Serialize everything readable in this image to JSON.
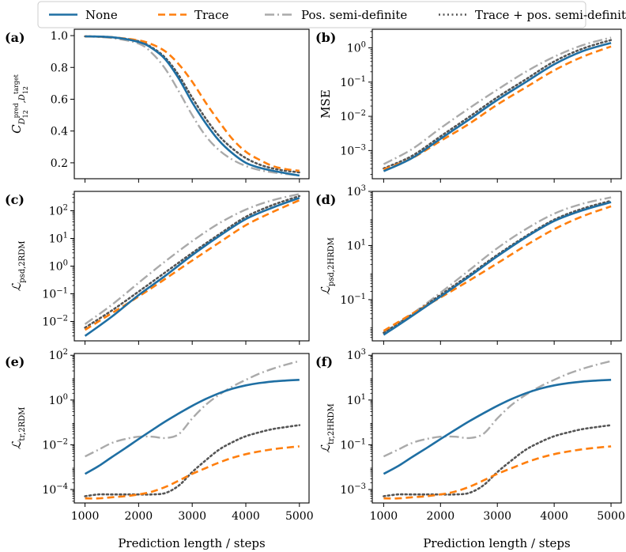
{
  "legend": {
    "entries": [
      {
        "key": "none",
        "label": "None",
        "color": "#1f6fa3",
        "dash": "solid"
      },
      {
        "key": "trace",
        "label": "Trace",
        "color": "#ff7f0e",
        "dash": "dashed"
      },
      {
        "key": "psd",
        "label": "Pos. semi-definite",
        "color": "#aaaaaa",
        "dash": "dashdot"
      },
      {
        "key": "trpsd",
        "label": "Trace + pos. semi-definite",
        "color": "#555555",
        "dash": "dotted"
      }
    ]
  },
  "xlabel": "Prediction length / steps",
  "chart_data": [
    {
      "id": "a",
      "letter": "(a)",
      "type": "line",
      "scale": "linear",
      "ylabel": "C_{D12pred, D12target}",
      "xlim": [
        800,
        5180
      ],
      "ylim": [
        0.1,
        1.04
      ],
      "xticks": [
        1000,
        2000,
        3000,
        4000,
        5000
      ],
      "yticks": [
        0.2,
        0.4,
        0.6,
        0.8,
        1.0
      ],
      "ytick_labels": [
        "0.2",
        "0.4",
        "0.6",
        "0.8",
        "1.0"
      ],
      "x": [
        1000,
        1500,
        2000,
        2250,
        2500,
        2750,
        3000,
        3250,
        3500,
        3750,
        4000,
        4250,
        4500,
        4750,
        5000
      ],
      "series": {
        "none": [
          0.995,
          0.99,
          0.96,
          0.92,
          0.85,
          0.73,
          0.58,
          0.45,
          0.34,
          0.26,
          0.2,
          0.17,
          0.15,
          0.135,
          0.12
        ],
        "trace": [
          0.995,
          0.99,
          0.97,
          0.945,
          0.9,
          0.82,
          0.71,
          0.58,
          0.46,
          0.35,
          0.27,
          0.22,
          0.18,
          0.16,
          0.15
        ],
        "psd": [
          0.995,
          0.985,
          0.95,
          0.89,
          0.79,
          0.65,
          0.5,
          0.37,
          0.28,
          0.22,
          0.18,
          0.155,
          0.14,
          0.13,
          0.12
        ],
        "trpsd": [
          0.995,
          0.99,
          0.965,
          0.925,
          0.86,
          0.75,
          0.61,
          0.48,
          0.37,
          0.29,
          0.23,
          0.19,
          0.165,
          0.15,
          0.14
        ]
      }
    },
    {
      "id": "b",
      "letter": "(b)",
      "type": "line",
      "scale": "log",
      "ylabel": "MSE",
      "xlim": [
        800,
        5180
      ],
      "ylim": [
        0.00015,
        3.5
      ],
      "xticks": [
        1000,
        2000,
        3000,
        4000,
        5000
      ],
      "yticks": [
        0.001,
        0.01,
        0.1,
        1
      ],
      "ytick_labels": [
        "10^-3",
        "10^-2",
        "10^-1",
        "10^0"
      ],
      "x": [
        1000,
        1500,
        2000,
        2500,
        3000,
        3500,
        4000,
        4500,
        5000
      ],
      "series": {
        "none": [
          0.00025,
          0.0006,
          0.0022,
          0.008,
          0.03,
          0.1,
          0.33,
          0.8,
          1.4
        ],
        "trace": [
          0.00028,
          0.0006,
          0.0019,
          0.006,
          0.022,
          0.07,
          0.22,
          0.55,
          1.1
        ],
        "psd": [
          0.0004,
          0.0011,
          0.0045,
          0.017,
          0.06,
          0.2,
          0.55,
          1.2,
          2.0
        ],
        "trpsd": [
          0.0003,
          0.0007,
          0.0026,
          0.0095,
          0.036,
          0.12,
          0.4,
          0.95,
          1.7
        ]
      }
    },
    {
      "id": "c",
      "letter": "(c)",
      "type": "line",
      "scale": "log",
      "ylabel": "L_{psd,2RDM}",
      "xlim": [
        800,
        5180
      ],
      "ylim": [
        0.002,
        500
      ],
      "xticks": [
        1000,
        2000,
        3000,
        4000,
        5000
      ],
      "yticks": [
        0.01,
        0.1,
        1,
        10,
        100
      ],
      "ytick_labels": [
        "10^-2",
        "10^-1",
        "10^0",
        "10^1",
        "10^2"
      ],
      "x": [
        1000,
        1500,
        2000,
        2500,
        3000,
        3500,
        4000,
        4500,
        5000
      ],
      "series": {
        "none": [
          0.003,
          0.015,
          0.09,
          0.45,
          2.5,
          12,
          50,
          130,
          290
        ],
        "trace": [
          0.005,
          0.02,
          0.08,
          0.35,
          1.6,
          7,
          30,
          90,
          240
        ],
        "psd": [
          0.008,
          0.04,
          0.25,
          1.5,
          8,
          35,
          110,
          240,
          400
        ],
        "trpsd": [
          0.006,
          0.025,
          0.12,
          0.6,
          3,
          14,
          60,
          160,
          340
        ]
      }
    },
    {
      "id": "d",
      "letter": "(d)",
      "type": "line",
      "scale": "log",
      "ylabel": "L_{psd,2HRDM}",
      "xlim": [
        800,
        5180
      ],
      "ylim": [
        0.003,
        1000
      ],
      "xticks": [
        1000,
        2000,
        3000,
        4000,
        5000
      ],
      "yticks": [
        0.1,
        10,
        1000
      ],
      "ytick_labels": [
        "10^-1",
        "10^1",
        "10^3"
      ],
      "x": [
        1000,
        1500,
        2000,
        2500,
        3000,
        3500,
        4000,
        4500,
        5000
      ],
      "series": {
        "none": [
          0.005,
          0.025,
          0.13,
          0.7,
          4,
          20,
          80,
          200,
          400
        ],
        "trace": [
          0.007,
          0.03,
          0.12,
          0.5,
          2.2,
          10,
          40,
          120,
          280
        ],
        "psd": [
          0.006,
          0.03,
          0.18,
          1.2,
          8,
          40,
          150,
          350,
          600
        ],
        "trpsd": [
          0.006,
          0.028,
          0.15,
          0.8,
          4.5,
          22,
          90,
          230,
          450
        ]
      }
    },
    {
      "id": "e",
      "letter": "(e)",
      "type": "line",
      "scale": "log",
      "ylabel": "L_{tr,2RDM}",
      "xlim": [
        800,
        5180
      ],
      "ylim": [
        2.5e-05,
        120
      ],
      "xticks": [
        1000,
        2000,
        3000,
        4000,
        5000
      ],
      "yticks": [
        0.0001,
        0.01,
        1,
        100
      ],
      "ytick_labels": [
        "10^-4",
        "10^-2",
        "10^0",
        "10^2"
      ],
      "x": [
        1000,
        1250,
        1500,
        1750,
        2000,
        2250,
        2500,
        2750,
        3000,
        3250,
        3500,
        3750,
        4000,
        4250,
        4500,
        4750,
        5000
      ],
      "series": {
        "none": [
          0.0005,
          0.0011,
          0.0028,
          0.007,
          0.018,
          0.045,
          0.11,
          0.25,
          0.55,
          1.1,
          2.0,
          3.2,
          4.5,
          5.7,
          6.7,
          7.4,
          8.0
        ],
        "trace": [
          4e-05,
          4e-05,
          4.5e-05,
          5e-05,
          6e-05,
          8e-05,
          0.00013,
          0.00025,
          0.0005,
          0.0009,
          0.0016,
          0.0026,
          0.0038,
          0.005,
          0.0063,
          0.0074,
          0.0085
        ],
        "psd": [
          0.003,
          0.006,
          0.012,
          0.018,
          0.023,
          0.023,
          0.02,
          0.03,
          0.15,
          0.6,
          1.7,
          4.0,
          8.0,
          15,
          25,
          38,
          55
        ],
        "trpsd": [
          5e-05,
          6e-05,
          6e-05,
          6e-05,
          6e-05,
          6e-05,
          7e-05,
          0.00015,
          0.0006,
          0.002,
          0.006,
          0.013,
          0.024,
          0.036,
          0.05,
          0.062,
          0.075
        ]
      }
    },
    {
      "id": "f",
      "letter": "(f)",
      "type": "line",
      "scale": "log",
      "ylabel": "L_{tr,2HRDM}",
      "xlim": [
        800,
        5180
      ],
      "ylim": [
        0.00025,
        1200
      ],
      "xticks": [
        1000,
        2000,
        3000,
        4000,
        5000
      ],
      "yticks": [
        0.001,
        0.1,
        10,
        1000
      ],
      "ytick_labels": [
        "10^-3",
        "10^-1",
        "10^1",
        "10^3"
      ],
      "x": [
        1000,
        1250,
        1500,
        1750,
        2000,
        2250,
        2500,
        2750,
        3000,
        3250,
        3500,
        3750,
        4000,
        4250,
        4500,
        4750,
        5000
      ],
      "series": {
        "none": [
          0.005,
          0.011,
          0.028,
          0.07,
          0.18,
          0.45,
          1.1,
          2.5,
          5.5,
          11,
          20,
          32,
          45,
          57,
          67,
          74,
          80
        ],
        "trace": [
          0.0004,
          0.0004,
          0.00045,
          0.0005,
          0.0006,
          0.0008,
          0.0013,
          0.0025,
          0.005,
          0.009,
          0.016,
          0.026,
          0.038,
          0.05,
          0.063,
          0.074,
          0.085
        ],
        "psd": [
          0.03,
          0.06,
          0.12,
          0.18,
          0.23,
          0.23,
          0.2,
          0.3,
          1.5,
          6,
          17,
          40,
          80,
          150,
          250,
          380,
          550
        ],
        "trpsd": [
          0.0005,
          0.0006,
          0.0006,
          0.0006,
          0.0006,
          0.0006,
          0.0007,
          0.0015,
          0.006,
          0.02,
          0.06,
          0.13,
          0.24,
          0.36,
          0.5,
          0.62,
          0.75
        ]
      }
    }
  ]
}
